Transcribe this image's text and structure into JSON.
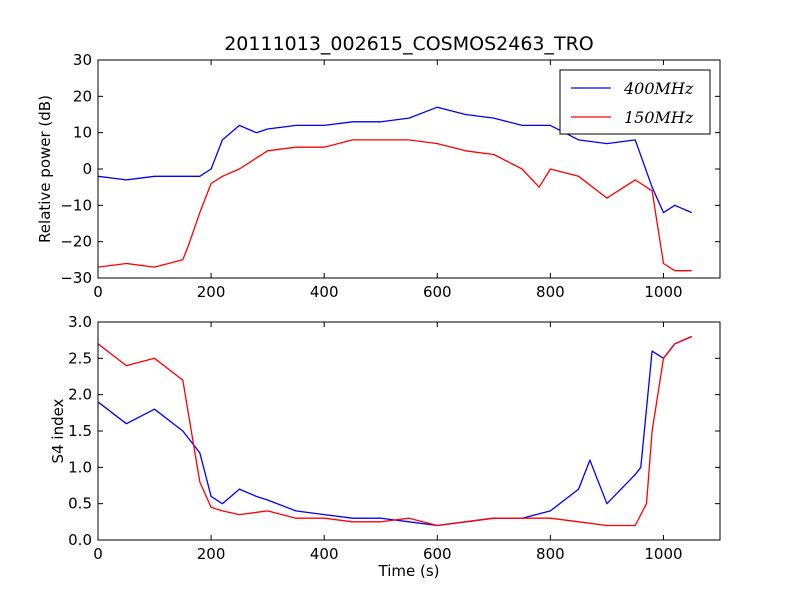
{
  "chart_data": [
    {
      "type": "line",
      "title": "20111013_002615_COSMOS2463_TRO",
      "xlabel": "",
      "ylabel": "Relative power (dB)",
      "xlim": [
        0,
        1100
      ],
      "ylim": [
        -30,
        30
      ],
      "xticks": [
        "0",
        "200",
        "400",
        "600",
        "800",
        "1000"
      ],
      "yticks": [
        "30",
        "20",
        "10",
        "0",
        "−10",
        "−20",
        "−30"
      ],
      "legend": {
        "location": "upper right",
        "entries": [
          "400MHz",
          "150MHz"
        ]
      },
      "series": [
        {
          "name": "400MHz",
          "color": "#0000ff",
          "x": [
            0,
            50,
            100,
            150,
            180,
            200,
            220,
            250,
            280,
            300,
            350,
            400,
            450,
            500,
            550,
            600,
            650,
            700,
            750,
            800,
            850,
            900,
            950,
            980,
            1000,
            1020,
            1050
          ],
          "y": [
            -2,
            -3,
            -2,
            -2,
            -2,
            0,
            8,
            12,
            10,
            11,
            12,
            12,
            13,
            13,
            14,
            17,
            15,
            14,
            12,
            12,
            8,
            7,
            8,
            -5,
            -12,
            -10,
            -12
          ]
        },
        {
          "name": "150MHz",
          "color": "#ff0000",
          "x": [
            0,
            50,
            100,
            150,
            160,
            180,
            200,
            220,
            250,
            300,
            350,
            400,
            450,
            500,
            550,
            600,
            650,
            700,
            750,
            780,
            800,
            850,
            900,
            950,
            980,
            1000,
            1020,
            1050
          ],
          "y": [
            -27,
            -26,
            -27,
            -25,
            -21,
            -12,
            -4,
            -2,
            0,
            5,
            6,
            6,
            8,
            8,
            8,
            7,
            5,
            4,
            0,
            -5,
            0,
            -2,
            -8,
            -3,
            -6,
            -26,
            -28,
            -28
          ]
        }
      ]
    },
    {
      "type": "line",
      "title": "",
      "xlabel": "Time (s)",
      "ylabel": "S4 index",
      "xlim": [
        0,
        1100
      ],
      "ylim": [
        0,
        3
      ],
      "xticks": [
        "0",
        "200",
        "400",
        "600",
        "800",
        "1000"
      ],
      "yticks": [
        "3.0",
        "2.5",
        "2.0",
        "1.5",
        "1.0",
        "0.5",
        "0.0"
      ],
      "series": [
        {
          "name": "400MHz",
          "color": "#0000ff",
          "x": [
            0,
            50,
            100,
            150,
            180,
            200,
            220,
            250,
            280,
            300,
            350,
            400,
            450,
            500,
            550,
            600,
            650,
            700,
            750,
            800,
            850,
            870,
            900,
            950,
            960,
            980,
            1000,
            1020,
            1050
          ],
          "y": [
            1.9,
            1.6,
            1.8,
            1.5,
            1.2,
            0.6,
            0.5,
            0.7,
            0.6,
            0.55,
            0.4,
            0.35,
            0.3,
            0.3,
            0.25,
            0.2,
            0.25,
            0.3,
            0.3,
            0.4,
            0.7,
            1.1,
            0.5,
            0.9,
            1.0,
            2.6,
            2.5,
            2.7,
            2.8
          ]
        },
        {
          "name": "150MHz",
          "color": "#ff0000",
          "x": [
            0,
            50,
            100,
            150,
            180,
            200,
            220,
            250,
            300,
            350,
            400,
            450,
            500,
            550,
            600,
            650,
            700,
            750,
            800,
            850,
            900,
            950,
            970,
            980,
            1000,
            1020,
            1050
          ],
          "y": [
            2.7,
            2.4,
            2.5,
            2.2,
            0.8,
            0.45,
            0.4,
            0.35,
            0.4,
            0.3,
            0.3,
            0.25,
            0.25,
            0.3,
            0.2,
            0.25,
            0.3,
            0.3,
            0.3,
            0.25,
            0.2,
            0.2,
            0.5,
            1.5,
            2.5,
            2.7,
            2.8
          ]
        }
      ]
    }
  ]
}
